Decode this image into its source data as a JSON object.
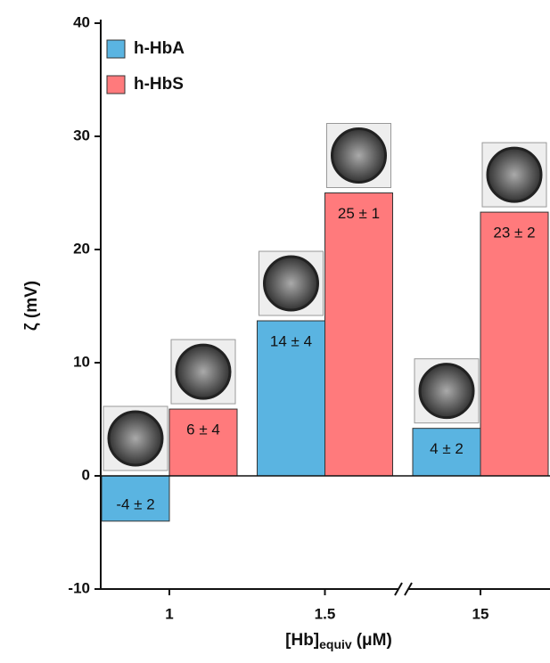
{
  "chart_data": {
    "type": "bar",
    "ylabel": "ζ (mV)",
    "xlabel": "[Hb]",
    "xlabel_sub": "equiv",
    "xlabel_unit": "(μM)",
    "categories": [
      "1",
      "1.5",
      "15"
    ],
    "series": [
      {
        "name": "h-HbA",
        "color": "#5ab4e1",
        "values": [
          -4,
          13.7,
          4.2
        ],
        "value_labels": [
          "-4 ± 2",
          "14 ± 4",
          "4 ± 2"
        ]
      },
      {
        "name": "h-HbS",
        "color": "#ff7a7c",
        "values": [
          5.9,
          25,
          23.3
        ],
        "value_labels": [
          "6 ± 4",
          "25 ± 1",
          "23 ± 2"
        ]
      }
    ],
    "ylim": [
      -10,
      40
    ],
    "yticks": [
      -10,
      0,
      10,
      20,
      30,
      40
    ],
    "legend": "upper left"
  }
}
